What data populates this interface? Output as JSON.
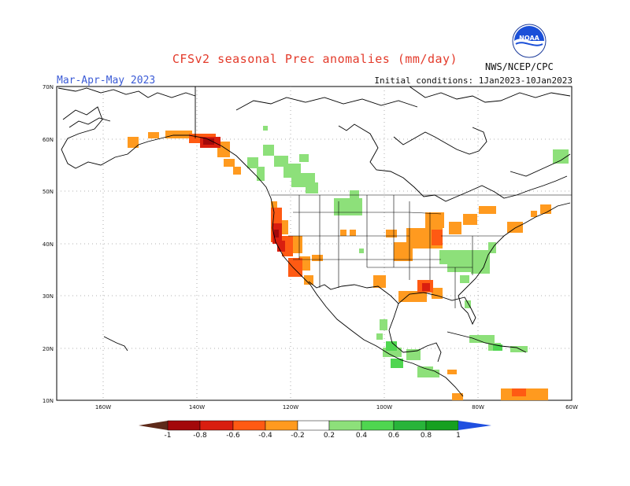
{
  "header": {
    "title": "CFSv2 seasonal Prec anomalies (mm/day)",
    "season": "Mar-Apr-May 2023",
    "init": "Initial conditions: 1Jan2023-10Jan2023",
    "agency": "NWS/NCEP/CPC",
    "logo_text": "NOAA"
  },
  "axes": {
    "lat_labels": [
      "70N",
      "60N",
      "50N",
      "40N",
      "30N",
      "20N",
      "10N"
    ],
    "lon_labels": [
      "160W",
      "140W",
      "120W",
      "100W",
      "80W",
      "60W"
    ],
    "lat_range": [
      10,
      70
    ],
    "lon_range": [
      -170,
      -60
    ]
  },
  "colorbar": {
    "labels": [
      "-1",
      "-0.8",
      "-0.6",
      "-0.4",
      "-0.2",
      "0.2",
      "0.4",
      "0.6",
      "0.8",
      "1"
    ],
    "colors": [
      "#5e2a1a",
      "#a3080a",
      "#d91e0f",
      "#ff5a13",
      "#ff9a1f",
      "#ffffff",
      "#8de07a",
      "#4fd650",
      "#28b43a",
      "#16a020",
      "#1f4fe0"
    ]
  },
  "map_style": {
    "grid": "dotted",
    "background": "#ffffff",
    "coastline_color": "#000000"
  }
}
